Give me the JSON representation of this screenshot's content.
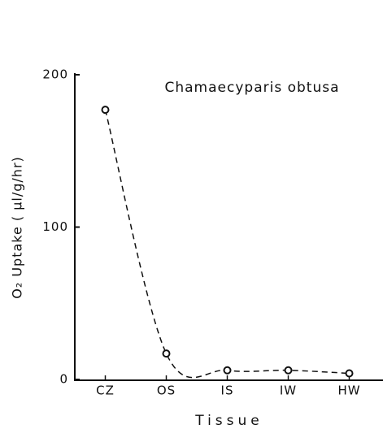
{
  "chart_data": {
    "type": "line",
    "title": "Chamaecyparis obtusa",
    "x_label": "Tissue",
    "y_label": "O₂ Uptake ( μl/g/hr)",
    "categories": [
      "CZ",
      "OS",
      "IS",
      "IW",
      "HW"
    ],
    "values": [
      177,
      17,
      6,
      6,
      4
    ],
    "color": "#111111",
    "ylim": [
      0,
      200
    ],
    "yticks": [
      0,
      100,
      200
    ],
    "grid": false,
    "dashed": true,
    "markers": true
  }
}
